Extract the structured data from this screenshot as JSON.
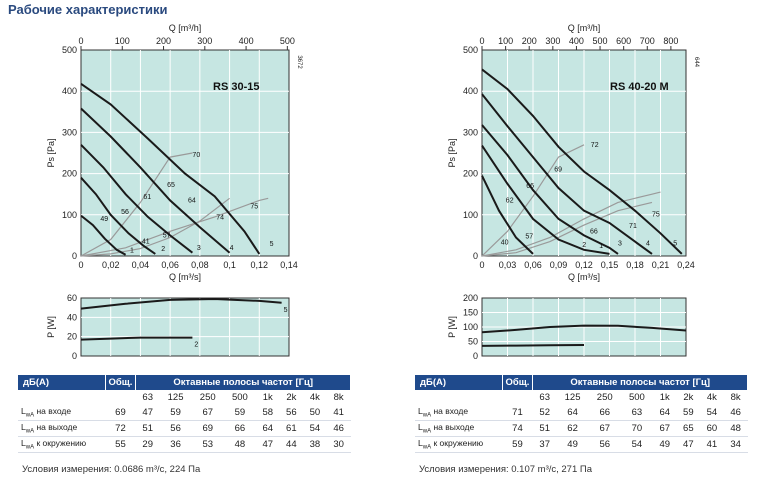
{
  "page_title": "Рабочие характеристики",
  "chart_data": [
    {
      "type": "line",
      "title": "RS 30-15",
      "side_code": "3672",
      "top_axis_label": "Q [m³/h]",
      "top_ticks": [
        "0",
        "100",
        "200",
        "300",
        "400",
        "500"
      ],
      "top_max": 504,
      "xlabel": "Q [m³/s]",
      "xlim": [
        0,
        0.14
      ],
      "x_ticks": [
        "0",
        "0,02",
        "0,04",
        "0,06",
        "0,08",
        "0,1",
        "0,12",
        "0,14"
      ],
      "ylabel": "Ps [Pa]",
      "ylim": [
        0,
        500
      ],
      "y_ticks": [
        "0",
        "100",
        "200",
        "300",
        "400",
        "500"
      ],
      "grid": true,
      "curves": [
        {
          "label": "",
          "x": [
            0,
            0.008,
            0.016,
            0.024,
            0.03
          ],
          "y": [
            98,
            75,
            42,
            15,
            3
          ]
        },
        {
          "label": "",
          "x": [
            0,
            0.01,
            0.02,
            0.032,
            0.042,
            0.05
          ],
          "y": [
            190,
            150,
            100,
            55,
            25,
            5
          ]
        },
        {
          "label": "",
          "x": [
            0,
            0.015,
            0.03,
            0.045,
            0.06,
            0.075
          ],
          "y": [
            270,
            215,
            150,
            95,
            50,
            8
          ]
        },
        {
          "label": "",
          "x": [
            0,
            0.02,
            0.04,
            0.06,
            0.08,
            0.1
          ],
          "y": [
            358,
            290,
            215,
            135,
            70,
            8
          ]
        },
        {
          "label": "",
          "x": [
            0,
            0.02,
            0.045,
            0.07,
            0.09,
            0.11,
            0.12
          ],
          "y": [
            418,
            368,
            285,
            200,
            145,
            60,
            5
          ]
        }
      ],
      "curve_end_labels": [
        {
          "text": "1",
          "x": 0.033,
          "y": 8
        },
        {
          "text": "2",
          "x": 0.054,
          "y": 12
        },
        {
          "text": "3",
          "x": 0.078,
          "y": 14
        },
        {
          "text": "4",
          "x": 0.1,
          "y": 14
        },
        {
          "text": "5",
          "x": 0.127,
          "y": 24
        }
      ],
      "system_curves": [
        {
          "x": [
            0,
            0.02,
            0.04,
            0.06,
            0.08,
            0.1
          ],
          "y": [
            0,
            5,
            18,
            45,
            85,
            140
          ]
        },
        {
          "x": [
            0,
            0.03,
            0.06,
            0.09,
            0.12,
            0.126
          ],
          "y": [
            0,
            20,
            60,
            95,
            135,
            140
          ]
        },
        {
          "x": [
            0,
            0.02,
            0.04,
            0.06,
            0.075
          ],
          "y": [
            0,
            40,
            130,
            240,
            250
          ]
        }
      ],
      "annotations": [
        {
          "text": "49",
          "x": 0.013,
          "y": 85
        },
        {
          "text": "56",
          "x": 0.027,
          "y": 102
        },
        {
          "text": "61",
          "x": 0.042,
          "y": 138
        },
        {
          "text": "65",
          "x": 0.058,
          "y": 168
        },
        {
          "text": "70",
          "x": 0.075,
          "y": 240
        },
        {
          "text": "41",
          "x": 0.041,
          "y": 30
        },
        {
          "text": "57",
          "x": 0.055,
          "y": 45
        },
        {
          "text": "64",
          "x": 0.072,
          "y": 130
        },
        {
          "text": "74",
          "x": 0.091,
          "y": 88
        },
        {
          "text": "75",
          "x": 0.114,
          "y": 115
        }
      ],
      "power": {
        "ylabel": "P [W]",
        "ylim": [
          0,
          60
        ],
        "y_ticks": [
          "0",
          "20",
          "40",
          "60"
        ],
        "curves": [
          {
            "label": "5",
            "x": [
              0,
              0.03,
              0.06,
              0.09,
              0.12,
              0.135
            ],
            "y": [
              49,
              54,
              58,
              59,
              57,
              55
            ]
          },
          {
            "label": "2",
            "x": [
              0,
              0.02,
              0.04,
              0.055,
              0.075
            ],
            "y": [
              17,
              18,
              19,
              19,
              19
            ]
          }
        ]
      }
    },
    {
      "type": "line",
      "title": "RS 40-20 M",
      "side_code": "644",
      "top_axis_label": "Q [m³/h]",
      "top_ticks": [
        "0",
        "100",
        "200",
        "300",
        "400",
        "500",
        "600",
        "700",
        "800"
      ],
      "top_max": 864,
      "xlabel": "Q [m³/s]",
      "xlim": [
        0,
        0.24
      ],
      "x_ticks": [
        "0",
        "0,03",
        "0,06",
        "0,09",
        "0,12",
        "0,15",
        "0,18",
        "0,21",
        "0,24"
      ],
      "ylabel": "Ps [Pa]",
      "ylim": [
        0,
        500
      ],
      "y_ticks": [
        "0",
        "100",
        "200",
        "300",
        "400",
        "500"
      ],
      "grid": true,
      "curves": [
        {
          "label": "",
          "x": [
            0,
            0.02,
            0.04,
            0.06
          ],
          "y": [
            195,
            110,
            45,
            5
          ]
        },
        {
          "label": "",
          "x": [
            0,
            0.03,
            0.06,
            0.09,
            0.12,
            0.15
          ],
          "y": [
            268,
            175,
            90,
            40,
            15,
            5
          ]
        },
        {
          "label": "",
          "x": [
            0,
            0.03,
            0.06,
            0.09,
            0.12,
            0.15,
            0.16
          ],
          "y": [
            318,
            245,
            160,
            90,
            50,
            20,
            5
          ]
        },
        {
          "label": "",
          "x": [
            0,
            0.03,
            0.06,
            0.09,
            0.12,
            0.15,
            0.18,
            0.2
          ],
          "y": [
            393,
            315,
            240,
            165,
            110,
            80,
            35,
            5
          ]
        },
        {
          "label": "",
          "x": [
            0,
            0.03,
            0.06,
            0.09,
            0.12,
            0.15,
            0.18,
            0.21,
            0.235
          ],
          "y": [
            453,
            405,
            340,
            265,
            205,
            160,
            110,
            55,
            5
          ]
        }
      ],
      "curve_end_labels": [
        {
          "text": "1",
          "x": 0.138,
          "y": 20
        },
        {
          "text": "2",
          "x": 0.118,
          "y": 22
        },
        {
          "text": "3",
          "x": 0.16,
          "y": 26
        },
        {
          "text": "4",
          "x": 0.193,
          "y": 26
        },
        {
          "text": "5",
          "x": 0.225,
          "y": 26
        }
      ],
      "system_curves": [
        {
          "x": [
            0,
            0.04,
            0.08,
            0.12,
            0.16,
            0.2
          ],
          "y": [
            0,
            8,
            35,
            75,
            110,
            130
          ]
        },
        {
          "x": [
            0,
            0.04,
            0.08,
            0.12,
            0.16,
            0.2,
            0.21
          ],
          "y": [
            0,
            15,
            45,
            90,
            130,
            150,
            155
          ]
        },
        {
          "x": [
            0,
            0.03,
            0.06,
            0.09,
            0.12
          ],
          "y": [
            0,
            60,
            145,
            240,
            270
          ]
        }
      ],
      "annotations": [
        {
          "text": "40",
          "x": 0.022,
          "y": 28
        },
        {
          "text": "62",
          "x": 0.028,
          "y": 130
        },
        {
          "text": "66",
          "x": 0.052,
          "y": 165
        },
        {
          "text": "69",
          "x": 0.085,
          "y": 205
        },
        {
          "text": "72",
          "x": 0.128,
          "y": 265
        },
        {
          "text": "57",
          "x": 0.051,
          "y": 42
        },
        {
          "text": "66",
          "x": 0.127,
          "y": 55
        },
        {
          "text": "71",
          "x": 0.173,
          "y": 68
        },
        {
          "text": "75",
          "x": 0.2,
          "y": 96
        }
      ],
      "power": {
        "ylabel": "P [W]",
        "ylim": [
          0,
          200
        ],
        "y_ticks": [
          "0",
          "50",
          "100",
          "150",
          "200"
        ],
        "curves": [
          {
            "label": "",
            "x": [
              0,
              0.04,
              0.08,
              0.12,
              0.16,
              0.2,
              0.24
            ],
            "y": [
              82,
              90,
              100,
              105,
              104,
              97,
              88
            ]
          },
          {
            "label": "",
            "x": [
              0,
              0.04,
              0.08,
              0.12
            ],
            "y": [
              35,
              36,
              37,
              38
            ]
          }
        ]
      }
    }
  ],
  "tables": [
    {
      "h_db": "дБ(А)",
      "h_gen": "Общ.",
      "h_bands": "Октавные полосы частот [Гц]",
      "freqs": [
        "63",
        "125",
        "250",
        "500",
        "1k",
        "2k",
        "4k",
        "8k"
      ],
      "rows": [
        {
          "label": "LwA на входе",
          "gen": "69",
          "vals": [
            "47",
            "59",
            "67",
            "59",
            "58",
            "56",
            "50",
            "41"
          ]
        },
        {
          "label": "LwA на выходе",
          "gen": "72",
          "vals": [
            "51",
            "56",
            "69",
            "66",
            "64",
            "61",
            "54",
            "46"
          ]
        },
        {
          "label": "LwA к окружению",
          "gen": "55",
          "vals": [
            "29",
            "36",
            "53",
            "48",
            "47",
            "44",
            "38",
            "30"
          ]
        }
      ],
      "condition": "Условия измерения: 0.0686 m³/с, 224 Па"
    },
    {
      "h_db": "дБ(А)",
      "h_gen": "Общ.",
      "h_bands": "Октавные полосы частот [Гц]",
      "freqs": [
        "63",
        "125",
        "250",
        "500",
        "1k",
        "2k",
        "4k",
        "8k"
      ],
      "rows": [
        {
          "label": "LwA на входе",
          "gen": "71",
          "vals": [
            "52",
            "64",
            "66",
            "63",
            "64",
            "59",
            "54",
            "46"
          ]
        },
        {
          "label": "LwA на выходе",
          "gen": "74",
          "vals": [
            "51",
            "62",
            "67",
            "70",
            "67",
            "65",
            "60",
            "48"
          ]
        },
        {
          "label": "LwA к окружению",
          "gen": "59",
          "vals": [
            "37",
            "49",
            "56",
            "54",
            "49",
            "47",
            "41",
            "34"
          ]
        }
      ],
      "condition": "Условия измерения: 0.107 m³/с, 271 Па"
    }
  ],
  "colors": {
    "plot_bg": "#c6e6e2",
    "grid": "#ffffff",
    "curve": "#1a1a1a",
    "system": "#9a9a9a",
    "header_bg": "#1f4a8c",
    "title": "#2a4a7f"
  }
}
